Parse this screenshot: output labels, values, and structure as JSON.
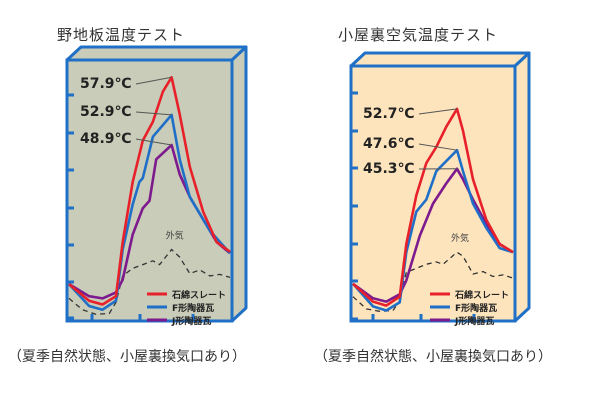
{
  "chart_data": [
    {
      "type": "line",
      "title": "野地板温度テスト",
      "caption": "（夏季自然状態、小屋裏換気口あり）",
      "background": "#c9ccb8",
      "frame_color": "#1f70c6",
      "xlim": [
        0,
        24
      ],
      "ylim": [
        25.5,
        60.2
      ],
      "grid": false,
      "legend_position": "bottom-right",
      "series": [
        {
          "name": "石綿スレート",
          "color": "#e8202a",
          "peak_label": "57.9℃",
          "points": [
            [
              0,
              30.4
            ],
            [
              3,
              28.2
            ],
            [
              5,
              27.7
            ],
            [
              7,
              28.8
            ],
            [
              8,
              36
            ],
            [
              9.5,
              44
            ],
            [
              11,
              49.5
            ],
            [
              12.5,
              52
            ],
            [
              14,
              56
            ],
            [
              15.3,
              57.9
            ],
            [
              16.5,
              53
            ],
            [
              18,
              46
            ],
            [
              20,
              40
            ],
            [
              22,
              36
            ],
            [
              24,
              34.7
            ]
          ]
        },
        {
          "name": "F形陶器瓦",
          "color": "#1f6fc8",
          "peak_label": "52.9℃",
          "points": [
            [
              0,
              30.4
            ],
            [
              3,
              27.5
            ],
            [
              5,
              27
            ],
            [
              7,
              28.2
            ],
            [
              8,
              35
            ],
            [
              9.5,
              41
            ],
            [
              10.5,
              44
            ],
            [
              11,
              44.5
            ],
            [
              12.5,
              50
            ],
            [
              15.3,
              52.9
            ],
            [
              16.5,
              47
            ],
            [
              18,
              42
            ],
            [
              19,
              40.5
            ],
            [
              21,
              37.5
            ],
            [
              24,
              34.5
            ]
          ]
        },
        {
          "name": "J形陶器瓦",
          "color": "#7d1a8e",
          "peak_label": "48.9℃",
          "points": [
            [
              0,
              30.4
            ],
            [
              3,
              28.8
            ],
            [
              5,
              28.5
            ],
            [
              7,
              29.3
            ],
            [
              8,
              31
            ],
            [
              9.5,
              37
            ],
            [
              11,
              40.5
            ],
            [
              12,
              41.5
            ],
            [
              13,
              47
            ],
            [
              15.3,
              48.9
            ],
            [
              16.5,
              45
            ],
            [
              18,
              42
            ],
            [
              20,
              39
            ],
            [
              22,
              36
            ],
            [
              24,
              34.5
            ]
          ]
        }
      ],
      "outside_air": {
        "label": "外気",
        "color": "#333333",
        "points": [
          [
            0,
            28.5
          ],
          [
            2,
            27
          ],
          [
            4,
            26.4
          ],
          [
            6,
            26.5
          ],
          [
            7,
            28
          ],
          [
            8,
            31.5
          ],
          [
            9.5,
            32.5
          ],
          [
            11,
            33
          ],
          [
            12.5,
            33.5
          ],
          [
            13.5,
            33
          ],
          [
            15.3,
            35
          ],
          [
            16.5,
            34
          ],
          [
            18,
            31.8
          ],
          [
            19.5,
            32.3
          ],
          [
            21,
            31.5
          ],
          [
            22.5,
            31.7
          ],
          [
            24,
            31.3
          ]
        ]
      }
    },
    {
      "type": "line",
      "title": "小屋裏空気温度テスト",
      "caption": "（夏季自然状態、小屋裏換気口あり）",
      "background": "#fde4bd",
      "frame_color": "#1f70c6",
      "xlim": [
        0,
        24
      ],
      "ylim": [
        26.5,
        58
      ],
      "grid": false,
      "legend_position": "bottom-right",
      "series": [
        {
          "name": "石綿スレート",
          "color": "#e8202a",
          "peak_label": "52.7℃",
          "points": [
            [
              0,
              31.1
            ],
            [
              3,
              28.9
            ],
            [
              5,
              28.4
            ],
            [
              7,
              29.5
            ],
            [
              8,
              36
            ],
            [
              9.5,
              42
            ],
            [
              11,
              46
            ],
            [
              12.5,
              48
            ],
            [
              14,
              50.5
            ],
            [
              15.6,
              52.7
            ],
            [
              16.5,
              50
            ],
            [
              18,
              44
            ],
            [
              20,
              39
            ],
            [
              22,
              36
            ],
            [
              24,
              35
            ]
          ]
        },
        {
          "name": "F形陶器瓦",
          "color": "#1f6fc8",
          "peak_label": "47.6℃",
          "points": [
            [
              0,
              31.1
            ],
            [
              3,
              28.3
            ],
            [
              5,
              27.8
            ],
            [
              7,
              28.8
            ],
            [
              8,
              35
            ],
            [
              9.5,
              40
            ],
            [
              10.5,
              41
            ],
            [
              11,
              41.5
            ],
            [
              12.5,
              45
            ],
            [
              15.6,
              47.6
            ],
            [
              16.5,
              45
            ],
            [
              18,
              41
            ],
            [
              20,
              38
            ],
            [
              22,
              35.5
            ],
            [
              24,
              35
            ]
          ]
        },
        {
          "name": "J形陶器瓦",
          "color": "#7d1a8e",
          "peak_label": "45.3℃",
          "points": [
            [
              0,
              31.1
            ],
            [
              3,
              29.3
            ],
            [
              5,
              28.9
            ],
            [
              7,
              29.8
            ],
            [
              8,
              31.5
            ],
            [
              10,
              37
            ],
            [
              12,
              41
            ],
            [
              14,
              43.5
            ],
            [
              15.6,
              45.3
            ],
            [
              16.5,
              44
            ],
            [
              18,
              41.5
            ],
            [
              20,
              38.5
            ],
            [
              22,
              36
            ],
            [
              24,
              35
            ]
          ]
        }
      ],
      "outside_air": {
        "label": "外気",
        "color": "#333333",
        "points": [
          [
            0,
            29.5
          ],
          [
            2,
            28
          ],
          [
            4,
            27.7
          ],
          [
            6,
            27.8
          ],
          [
            7,
            29
          ],
          [
            8,
            32.5
          ],
          [
            9.5,
            33
          ],
          [
            11,
            33.5
          ],
          [
            12.5,
            33.8
          ],
          [
            13.5,
            33.5
          ],
          [
            15.6,
            35
          ],
          [
            16.5,
            34.5
          ],
          [
            18,
            32.3
          ],
          [
            19.5,
            32.6
          ],
          [
            21,
            32
          ],
          [
            22.5,
            32.2
          ],
          [
            24,
            31.8
          ]
        ]
      }
    }
  ]
}
